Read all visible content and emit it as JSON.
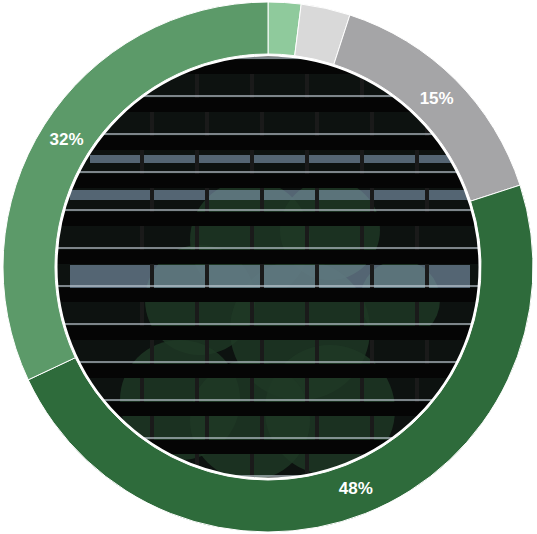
{
  "chart_data": {
    "type": "pie",
    "values": [
      2,
      3,
      15,
      48,
      32
    ],
    "colors": [
      "#8fca9c",
      "#d9d9d9",
      "#a5a5a7",
      "#2e6b3b",
      "#5c9a69"
    ],
    "data_labels": true,
    "value_labels": [
      null,
      null,
      "15%",
      "48%",
      "32%"
    ]
  }
}
